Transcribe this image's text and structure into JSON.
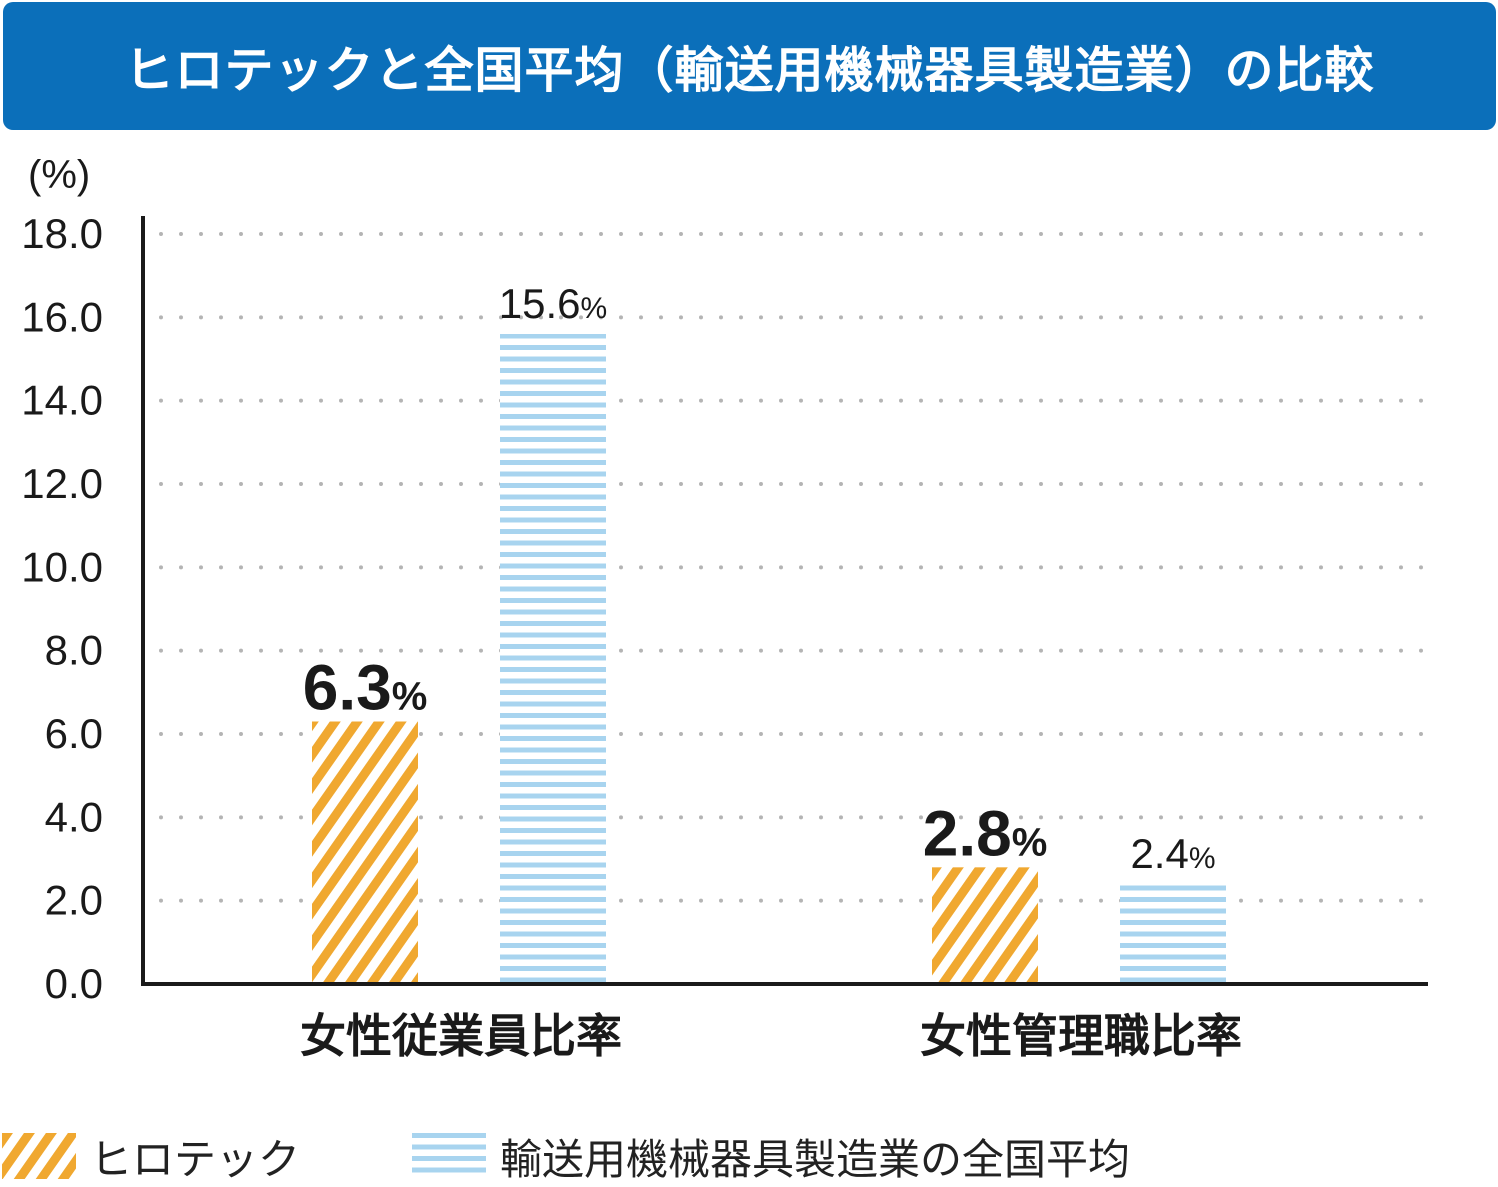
{
  "title": "ヒロテックと全国平均（輸送用機械器具製造業）の比較",
  "colors": {
    "header_bg": "#0b6fba",
    "hirotec": "#f0a830",
    "national": "#a8d4ef",
    "axis": "#1a1a1a",
    "grid": "#b4b4b4"
  },
  "chart_data": {
    "type": "bar",
    "unit_label": "(%)",
    "categories": [
      "女性従業員比率",
      "女性管理職比率"
    ],
    "series": [
      {
        "name": "ヒロテック",
        "values": [
          6.3,
          2.8
        ],
        "labels": [
          "6.3",
          "2.8"
        ],
        "pattern": "diagonal-stripes",
        "color": "#f0a830"
      },
      {
        "name": "輸送用機械器具製造業の全国平均",
        "values": [
          15.6,
          2.4
        ],
        "labels": [
          "15.6",
          "2.4"
        ],
        "pattern": "horizontal-stripes",
        "color": "#a8d4ef"
      }
    ],
    "ylim": [
      0,
      18
    ],
    "yticks": [
      "0.0",
      "2.0",
      "4.0",
      "6.0",
      "8.0",
      "10.0",
      "12.0",
      "14.0",
      "16.0",
      "18.0"
    ],
    "value_suffix": "%",
    "grid": true,
    "legend_position": "bottom"
  }
}
